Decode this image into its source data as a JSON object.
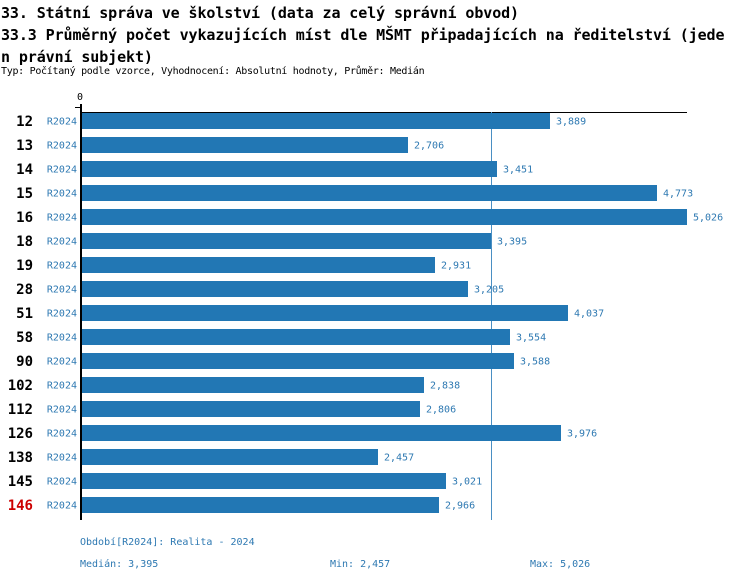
{
  "header": {
    "title_line1": "33. Státní správa ve školství (data za celý správní obvod)",
    "title_line2": "33.3 Průměrný počet vykazujících míst dle MŠMT připadajících na ředitelství (jede",
    "title_line3": "n právní subjekt)",
    "subtitle": "Typ: Počítaný podle vzorce, Vyhodnocení: Absolutní hodnoty, Průměr: Medián"
  },
  "chart_data": {
    "type": "bar",
    "orientation": "horizontal",
    "title": "33.3 Průměrný počet vykazujících míst dle MŠMT připadajících na ředitelství (jeden právní subjekt)",
    "xlabel": "",
    "ylabel": "",
    "xlim": [
      0,
      5026
    ],
    "x_origin_label": "0",
    "grid": false,
    "legend": "none",
    "period_label": "R2024",
    "categories": [
      "12",
      "13",
      "14",
      "15",
      "16",
      "18",
      "19",
      "28",
      "51",
      "58",
      "90",
      "102",
      "112",
      "126",
      "138",
      "145",
      "146"
    ],
    "values": [
      3889,
      2706,
      3451,
      4773,
      5026,
      3395,
      2931,
      3205,
      4037,
      3554,
      3588,
      2838,
      2806,
      3976,
      2457,
      3021,
      2966
    ],
    "value_labels": [
      "3,889",
      "2,706",
      "3,451",
      "4,773",
      "5,026",
      "3,395",
      "2,931",
      "3,205",
      "4,037",
      "3,554",
      "3,588",
      "2,838",
      "2,806",
      "3,976",
      "2,457",
      "3,021",
      "2,966"
    ],
    "highlighted_category": "146",
    "median": 3395,
    "min": 2457,
    "max": 5026,
    "colors": {
      "bar": "#2277b4",
      "blue_text": "#2e79b2",
      "median_line": "#4a8fc3",
      "axis": "#000000",
      "highlight_category": "#cc0000"
    }
  },
  "footer": {
    "period_info": "Období[R2024]: Realita - 2024",
    "median_label": "Medián: 3,395",
    "min_label": "Min: 2,457",
    "max_label": "Max: 5,026"
  }
}
